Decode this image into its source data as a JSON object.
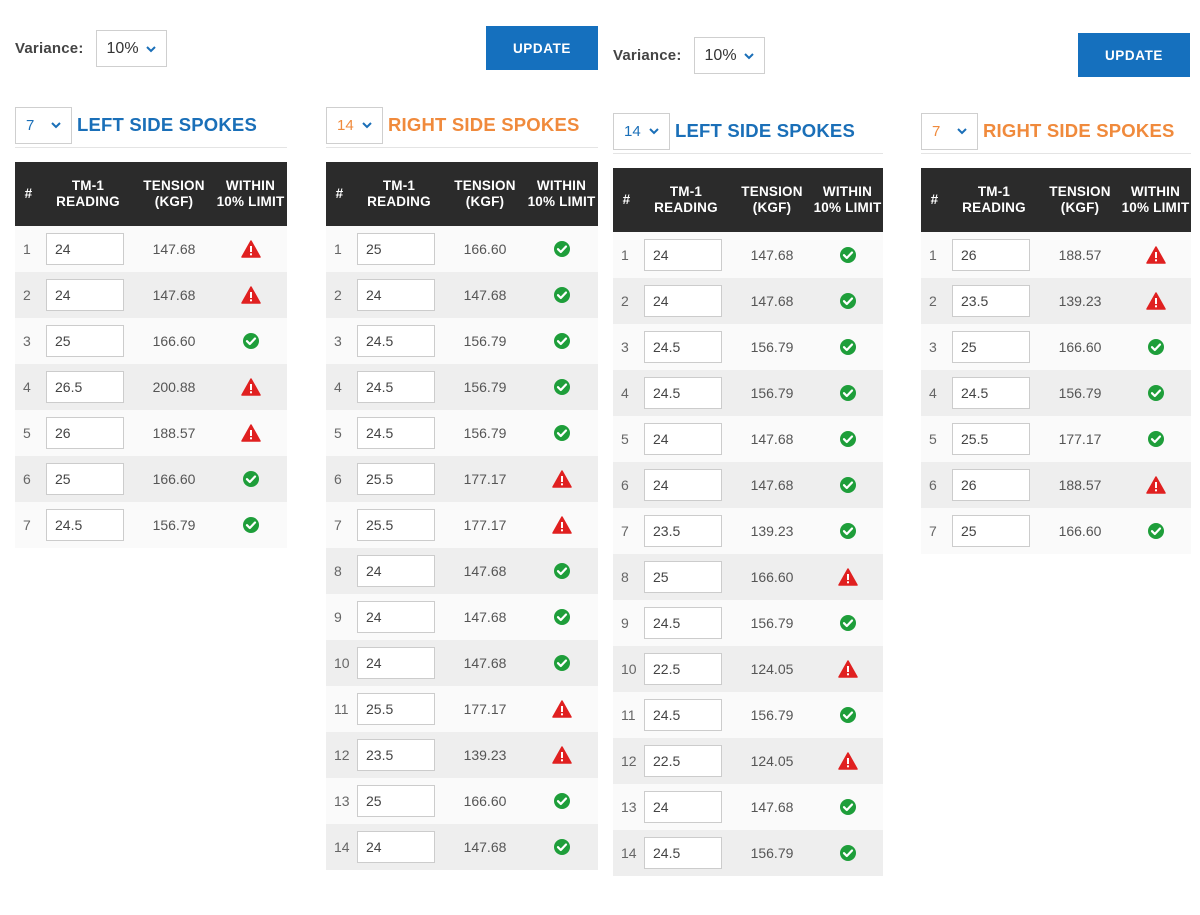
{
  "colors": {
    "accent_blue": "#1a6fb8",
    "accent_orange": "#f08a3c",
    "button_blue": "#1570be",
    "header_dark": "#2b2b2b",
    "ok_green": "#1e9e3a",
    "warn_red": "#e02020"
  },
  "halves": [
    {
      "variance_label": "Variance:",
      "variance_value": "10%",
      "update_label": "UPDATE",
      "panels": [
        {
          "side": "left",
          "count": "7",
          "title": "LEFT SIDE SPOKES",
          "headers": {
            "num": "#",
            "reading": "TM-1 READING",
            "tension": "TENSION (KGF)",
            "limit": "WITHIN 10% LIMIT"
          },
          "rows": [
            {
              "n": "1",
              "reading": "24",
              "tension": "147.68",
              "status": "warn",
              "icon": "warning-icon"
            },
            {
              "n": "2",
              "reading": "24",
              "tension": "147.68",
              "status": "warn",
              "icon": "warning-icon"
            },
            {
              "n": "3",
              "reading": "25",
              "tension": "166.60",
              "status": "ok",
              "icon": "check-circle-icon"
            },
            {
              "n": "4",
              "reading": "26.5",
              "tension": "200.88",
              "status": "warn",
              "icon": "warning-icon"
            },
            {
              "n": "5",
              "reading": "26",
              "tension": "188.57",
              "status": "warn",
              "icon": "warning-icon"
            },
            {
              "n": "6",
              "reading": "25",
              "tension": "166.60",
              "status": "ok",
              "icon": "check-circle-icon"
            },
            {
              "n": "7",
              "reading": "24.5",
              "tension": "156.79",
              "status": "ok",
              "icon": "check-circle-icon"
            }
          ]
        },
        {
          "side": "right",
          "count": "14",
          "title": "RIGHT SIDE SPOKES",
          "headers": {
            "num": "#",
            "reading": "TM-1 READING",
            "tension": "TENSION (KGF)",
            "limit": "WITHIN 10% LIMIT"
          },
          "rows": [
            {
              "n": "1",
              "reading": "25",
              "tension": "166.60",
              "status": "ok",
              "icon": "check-circle-icon"
            },
            {
              "n": "2",
              "reading": "24",
              "tension": "147.68",
              "status": "ok",
              "icon": "check-circle-icon"
            },
            {
              "n": "3",
              "reading": "24.5",
              "tension": "156.79",
              "status": "ok",
              "icon": "check-circle-icon"
            },
            {
              "n": "4",
              "reading": "24.5",
              "tension": "156.79",
              "status": "ok",
              "icon": "check-circle-icon"
            },
            {
              "n": "5",
              "reading": "24.5",
              "tension": "156.79",
              "status": "ok",
              "icon": "check-circle-icon"
            },
            {
              "n": "6",
              "reading": "25.5",
              "tension": "177.17",
              "status": "warn",
              "icon": "warning-icon"
            },
            {
              "n": "7",
              "reading": "25.5",
              "tension": "177.17",
              "status": "warn",
              "icon": "warning-icon"
            },
            {
              "n": "8",
              "reading": "24",
              "tension": "147.68",
              "status": "ok",
              "icon": "check-circle-icon"
            },
            {
              "n": "9",
              "reading": "24",
              "tension": "147.68",
              "status": "ok",
              "icon": "check-circle-icon"
            },
            {
              "n": "10",
              "reading": "24",
              "tension": "147.68",
              "status": "ok",
              "icon": "check-circle-icon"
            },
            {
              "n": "11",
              "reading": "25.5",
              "tension": "177.17",
              "status": "warn",
              "icon": "warning-icon"
            },
            {
              "n": "12",
              "reading": "23.5",
              "tension": "139.23",
              "status": "warn",
              "icon": "warning-icon"
            },
            {
              "n": "13",
              "reading": "25",
              "tension": "166.60",
              "status": "ok",
              "icon": "check-circle-icon"
            },
            {
              "n": "14",
              "reading": "24",
              "tension": "147.68",
              "status": "ok",
              "icon": "check-circle-icon"
            }
          ]
        }
      ]
    },
    {
      "variance_label": "Variance:",
      "variance_value": "10%",
      "update_label": "UPDATE",
      "panels": [
        {
          "side": "left",
          "count": "14",
          "title": "LEFT SIDE SPOKES",
          "headers": {
            "num": "#",
            "reading": "TM-1 READING",
            "tension": "TENSION (KGF)",
            "limit": "WITHIN 10% LIMIT"
          },
          "rows": [
            {
              "n": "1",
              "reading": "24",
              "tension": "147.68",
              "status": "ok",
              "icon": "check-circle-icon"
            },
            {
              "n": "2",
              "reading": "24",
              "tension": "147.68",
              "status": "ok",
              "icon": "check-circle-icon"
            },
            {
              "n": "3",
              "reading": "24.5",
              "tension": "156.79",
              "status": "ok",
              "icon": "check-circle-icon"
            },
            {
              "n": "4",
              "reading": "24.5",
              "tension": "156.79",
              "status": "ok",
              "icon": "check-circle-icon"
            },
            {
              "n": "5",
              "reading": "24",
              "tension": "147.68",
              "status": "ok",
              "icon": "check-circle-icon"
            },
            {
              "n": "6",
              "reading": "24",
              "tension": "147.68",
              "status": "ok",
              "icon": "check-circle-icon"
            },
            {
              "n": "7",
              "reading": "23.5",
              "tension": "139.23",
              "status": "ok",
              "icon": "check-circle-icon"
            },
            {
              "n": "8",
              "reading": "25",
              "tension": "166.60",
              "status": "warn",
              "icon": "warning-icon"
            },
            {
              "n": "9",
              "reading": "24.5",
              "tension": "156.79",
              "status": "ok",
              "icon": "check-circle-icon"
            },
            {
              "n": "10",
              "reading": "22.5",
              "tension": "124.05",
              "status": "warn",
              "icon": "warning-icon"
            },
            {
              "n": "11",
              "reading": "24.5",
              "tension": "156.79",
              "status": "ok",
              "icon": "check-circle-icon"
            },
            {
              "n": "12",
              "reading": "22.5",
              "tension": "124.05",
              "status": "warn",
              "icon": "warning-icon"
            },
            {
              "n": "13",
              "reading": "24",
              "tension": "147.68",
              "status": "ok",
              "icon": "check-circle-icon"
            },
            {
              "n": "14",
              "reading": "24.5",
              "tension": "156.79",
              "status": "ok",
              "icon": "check-circle-icon"
            }
          ]
        },
        {
          "side": "right",
          "count": "7",
          "title": "RIGHT SIDE SPOKES",
          "headers": {
            "num": "#",
            "reading": "TM-1 READING",
            "tension": "TENSION (KGF)",
            "limit": "WITHIN 10% LIMIT"
          },
          "rows": [
            {
              "n": "1",
              "reading": "26",
              "tension": "188.57",
              "status": "warn",
              "icon": "warning-icon"
            },
            {
              "n": "2",
              "reading": "23.5",
              "tension": "139.23",
              "status": "warn",
              "icon": "warning-icon"
            },
            {
              "n": "3",
              "reading": "25",
              "tension": "166.60",
              "status": "ok",
              "icon": "check-circle-icon"
            },
            {
              "n": "4",
              "reading": "24.5",
              "tension": "156.79",
              "status": "ok",
              "icon": "check-circle-icon"
            },
            {
              "n": "5",
              "reading": "25.5",
              "tension": "177.17",
              "status": "ok",
              "icon": "check-circle-icon"
            },
            {
              "n": "6",
              "reading": "26",
              "tension": "188.57",
              "status": "warn",
              "icon": "warning-icon"
            },
            {
              "n": "7",
              "reading": "25",
              "tension": "166.60",
              "status": "ok",
              "icon": "check-circle-icon"
            }
          ]
        }
      ]
    }
  ]
}
